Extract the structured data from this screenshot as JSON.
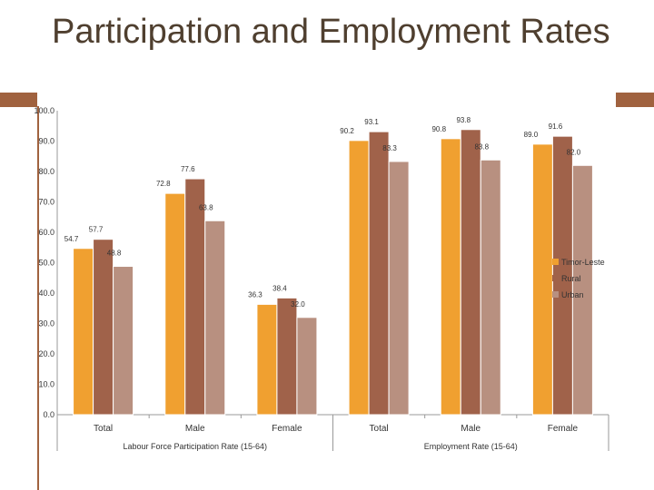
{
  "title": "Participation and Employment Rates",
  "chart_data": {
    "type": "bar",
    "title": "Participation and Employment Rates",
    "ylim": [
      0,
      100
    ],
    "yticks": [
      "0.0",
      "10.0",
      "20.0",
      "30.0",
      "40.0",
      "50.0",
      "60.0",
      "70.0",
      "80.0",
      "90.0",
      "100.0"
    ],
    "categories": [
      "Total",
      "Male",
      "Female",
      "Total",
      "Male",
      "Female"
    ],
    "groups": [
      {
        "label": "Labour Force Participation Rate (15-64)",
        "span": [
          0,
          2
        ]
      },
      {
        "label": "Employment Rate (15-64)",
        "span": [
          3,
          5
        ]
      }
    ],
    "series": [
      {
        "name": "Timor-Leste",
        "color": "#f0a030",
        "values": [
          54.7,
          72.8,
          36.3,
          90.2,
          90.8,
          89.0
        ],
        "labels": [
          "54.7",
          "72.8",
          "36.3",
          "90.2",
          "90.8",
          "89.0"
        ]
      },
      {
        "name": "Rural",
        "color": "#a0624a",
        "values": [
          57.7,
          77.6,
          38.4,
          93.1,
          93.8,
          91.6
        ],
        "labels": [
          "57.7",
          "77.6",
          "38.4",
          "93.1",
          "93.8",
          "91.6"
        ]
      },
      {
        "name": "Urban",
        "color": "#b89080",
        "values": [
          48.8,
          63.8,
          32.0,
          83.3,
          83.8,
          82.0
        ],
        "labels": [
          "48.8",
          "63.8",
          "32.0",
          "83.3",
          "83.8",
          "82.0"
        ]
      }
    ],
    "legend": "right"
  }
}
